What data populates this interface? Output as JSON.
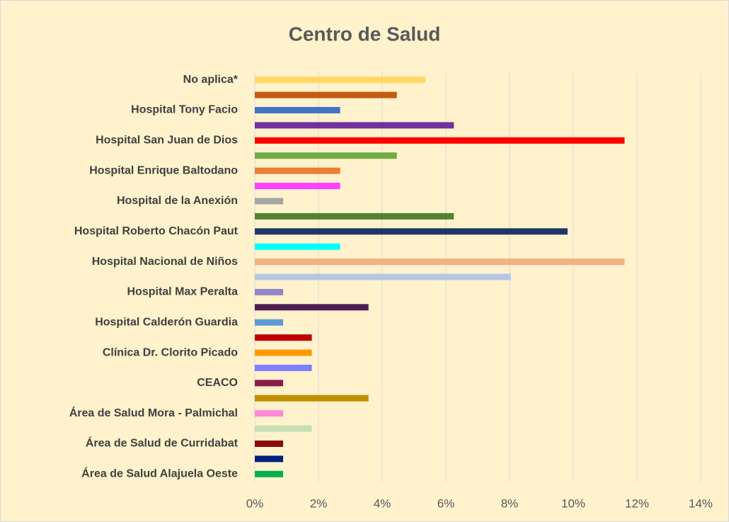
{
  "chart_data": {
    "type": "barh",
    "title": "Centro de Salud",
    "categories": [
      "No aplica*",
      null,
      "Hospital Tony Facio",
      null,
      "Hospital San Juan de Dios",
      null,
      "Hospital Enrique Baltodano",
      null,
      "Hospital de la Anexión",
      null,
      "Hospital Roberto Chacón Paut",
      null,
      "Hospital Nacional de Niños",
      null,
      "Hospital Max Peralta",
      null,
      "Hospital Calderón Guardia",
      null,
      "Clínica Dr. Clorito Picado",
      null,
      "CEACO",
      null,
      "Área de Salud Mora - Palmichal",
      null,
      "Área de Salud de Curridabat",
      null,
      "Área de Salud Alajuela Oeste"
    ],
    "values": [
      5.36,
      4.46,
      2.68,
      6.25,
      11.61,
      4.46,
      2.68,
      2.68,
      0.89,
      6.25,
      9.82,
      2.68,
      11.61,
      8.04,
      0.89,
      3.57,
      0.89,
      1.79,
      1.79,
      1.79,
      0.89,
      3.57,
      0.89,
      1.79,
      0.89,
      0.89,
      0.89
    ],
    "colors": [
      "#ffd966",
      "#c55a11",
      "#4472c4",
      "#7030a0",
      "#ff0000",
      "#70ad47",
      "#ed7d31",
      "#ff40ff",
      "#a5a5a5",
      "#548235",
      "#203864",
      "#00ffff",
      "#f4b183",
      "#b4c7e7",
      "#8e86c8",
      "#4e1f55",
      "#5b9bd5",
      "#c00000",
      "#ff9900",
      "#7f7fff",
      "#8b1a4a",
      "#bf9000",
      "#ff8ad8",
      "#c5e0b4",
      "#8b0a0a",
      "#002080",
      "#00b050"
    ],
    "xlim": [
      0,
      14
    ],
    "xticks": [
      {
        "value": 0,
        "label": "0%"
      },
      {
        "value": 2,
        "label": "2%"
      },
      {
        "value": 4,
        "label": "4%"
      },
      {
        "value": 6,
        "label": "6%"
      },
      {
        "value": 8,
        "label": "8%"
      },
      {
        "value": 10,
        "label": "10%"
      },
      {
        "value": 12,
        "label": "12%"
      },
      {
        "value": 14,
        "label": "14%"
      }
    ],
    "grid": true
  }
}
